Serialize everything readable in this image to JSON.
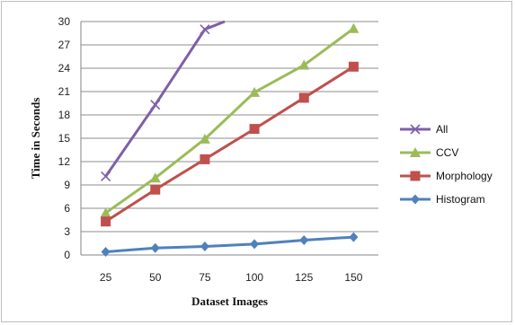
{
  "chart_data": {
    "type": "line",
    "title": "",
    "xlabel": "Dataset Images",
    "ylabel": "Time in Seconds",
    "x": [
      25,
      50,
      75,
      100,
      125,
      150
    ],
    "ylim": [
      0,
      30
    ],
    "yticks": [
      0,
      3,
      6,
      9,
      12,
      15,
      18,
      21,
      24,
      27,
      30
    ],
    "grid": true,
    "legend_position": "right",
    "series": [
      {
        "name": "All",
        "color": "#7f5fa8",
        "marker": "x",
        "values": [
          10.1,
          19.3,
          29.0,
          null,
          null,
          null
        ],
        "continues_above": 31.5
      },
      {
        "name": "CCV",
        "color": "#9bbb59",
        "marker": "triangle",
        "values": [
          5.4,
          9.9,
          14.9,
          20.9,
          24.4,
          29.1
        ]
      },
      {
        "name": "Morphology",
        "color": "#c0504d",
        "marker": "square",
        "values": [
          4.3,
          8.4,
          12.3,
          16.2,
          20.2,
          24.2
        ]
      },
      {
        "name": "Histogram",
        "color": "#4f81bd",
        "marker": "diamond",
        "values": [
          0.4,
          0.9,
          1.1,
          1.4,
          1.9,
          2.3
        ]
      }
    ]
  }
}
